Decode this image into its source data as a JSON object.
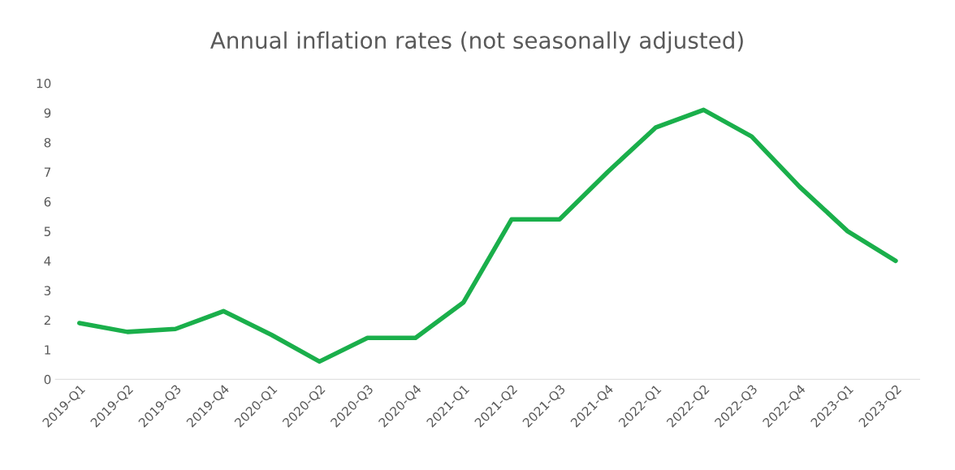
{
  "chart_data": {
    "type": "line",
    "title": "Annual inflation rates (not seasonally adjusted)",
    "categories": [
      "2019-Q1",
      "2019-Q2",
      "2019-Q3",
      "2019-Q4",
      "2020-Q1",
      "2020-Q2",
      "2020-Q3",
      "2020-Q4",
      "2021-Q1",
      "2021-Q2",
      "2021-Q3",
      "2021-Q4",
      "2022-Q1",
      "2022-Q2",
      "2022-Q3",
      "2022-Q4",
      "2023-Q1",
      "2023-Q2"
    ],
    "series": [
      {
        "color": "#1aaf4b",
        "values": [
          1.9,
          1.6,
          1.7,
          2.3,
          1.5,
          0.6,
          1.4,
          1.4,
          2.6,
          5.4,
          5.4,
          7.0,
          8.5,
          9.1,
          8.2,
          6.5,
          5.0,
          4.0
        ]
      }
    ],
    "ylim": [
      0,
      10
    ],
    "yticks": [
      0,
      1,
      2,
      3,
      4,
      5,
      6,
      7,
      8,
      9,
      10
    ],
    "grid": false,
    "legend": false,
    "marker": "none",
    "line_style": "solid"
  }
}
